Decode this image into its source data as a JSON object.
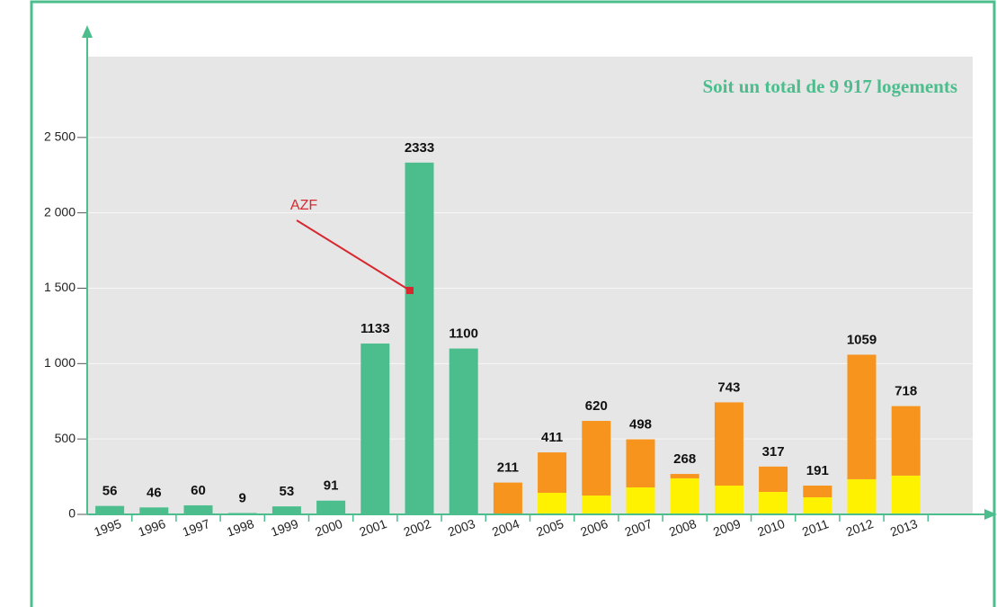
{
  "chart_data": {
    "type": "bar",
    "title": "Soit un total de 9 917 logements",
    "annotation": "AZF",
    "categories": [
      "1995",
      "1996",
      "1997",
      "1998",
      "1999",
      "2000",
      "2001",
      "2002",
      "2003",
      "2004",
      "2005",
      "2006",
      "2007",
      "2008",
      "2009",
      "2010",
      "2011",
      "2012",
      "2013"
    ],
    "series": [
      {
        "color": "#4cbd8c",
        "values": [
          56,
          46,
          60,
          9,
          53,
          91,
          1133,
          2333,
          1100,
          null,
          null,
          null,
          null,
          null,
          null,
          null,
          null,
          null,
          null
        ]
      },
      {
        "color": "#fff200",
        "values": [
          null,
          null,
          null,
          null,
          null,
          null,
          null,
          null,
          null,
          null,
          143,
          125,
          179,
          239,
          191,
          149,
          113,
          233,
          257
        ]
      },
      {
        "color": "#f7941d",
        "values": [
          null,
          null,
          null,
          null,
          null,
          null,
          null,
          null,
          null,
          211,
          268,
          495,
          319,
          29,
          552,
          168,
          78,
          826,
          461
        ]
      }
    ],
    "totals": [
      56,
      46,
      60,
      9,
      53,
      91,
      1133,
      2333,
      1100,
      211,
      411,
      620,
      498,
      268,
      743,
      317,
      191,
      1059,
      718
    ],
    "ylim": [
      0,
      3000
    ],
    "yticks": [
      0,
      500,
      {
        "value": 1000,
        "label": "1 000"
      },
      {
        "value": 1500,
        "label": "1 500"
      },
      {
        "value": 2000,
        "label": "2 000"
      },
      {
        "value": 2500,
        "label": "2 500"
      }
    ],
    "stacked": true,
    "grid": true
  }
}
